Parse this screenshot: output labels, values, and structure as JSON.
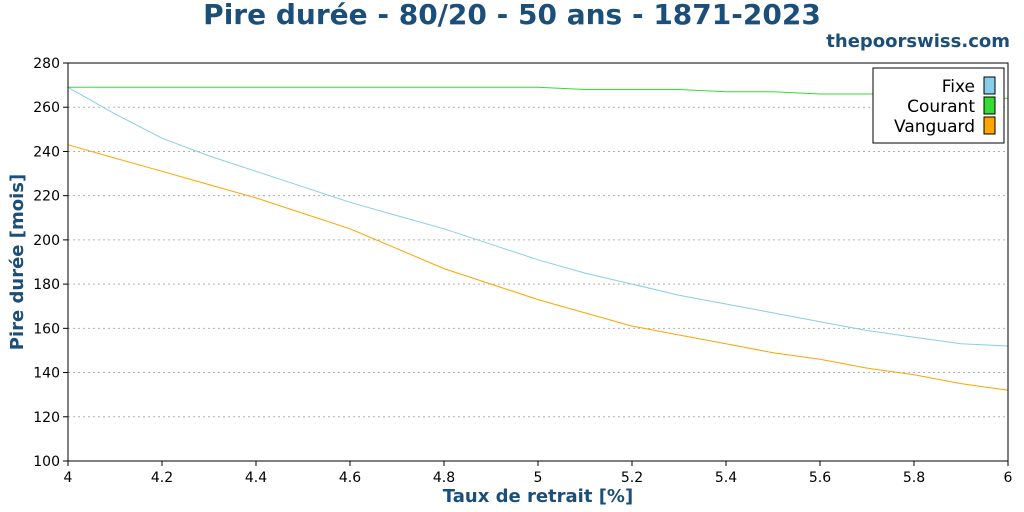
{
  "title": "Pire durée - 80/20 - 50 ans - 1871-2023",
  "site": "thepoorswiss.com",
  "chart_data": {
    "type": "line",
    "xlabel": "Taux de retrait [%]",
    "ylabel": "Pire durée [mois]",
    "xlim": [
      4,
      6
    ],
    "ylim": [
      100,
      280
    ],
    "x_ticks": [
      "4",
      "4.2",
      "4.4",
      "4.6",
      "4.8",
      "5",
      "5.2",
      "5.4",
      "5.6",
      "5.8",
      "6"
    ],
    "y_ticks": [
      "100",
      "120",
      "140",
      "160",
      "180",
      "200",
      "220",
      "240",
      "260",
      "280"
    ],
    "grid": "horizontal dotted",
    "legend_position": "top-right",
    "x": [
      4.0,
      4.1,
      4.2,
      4.3,
      4.4,
      4.5,
      4.6,
      4.7,
      4.8,
      4.9,
      5.0,
      5.1,
      5.2,
      5.3,
      5.4,
      5.5,
      5.6,
      5.7,
      5.8,
      5.9,
      6.0
    ],
    "series": [
      {
        "name": "Fixe",
        "color": "#87ceeb",
        "values": [
          269,
          257,
          246,
          238,
          231,
          224,
          217,
          211,
          205,
          198,
          191,
          185,
          180,
          175,
          171,
          167,
          163,
          159,
          156,
          153,
          152
        ]
      },
      {
        "name": "Courant",
        "color": "#33dd33",
        "values": [
          269,
          269,
          269,
          269,
          269,
          269,
          269,
          269,
          269,
          269,
          269,
          268,
          268,
          268,
          267,
          267,
          266,
          266,
          266,
          265,
          264
        ]
      },
      {
        "name": "Vanguard",
        "color": "#ffa500",
        "values": [
          243,
          237,
          231,
          225,
          219,
          212,
          205,
          196,
          187,
          180,
          173,
          167,
          161,
          157,
          153,
          149,
          146,
          142,
          139,
          135,
          132
        ]
      }
    ]
  }
}
